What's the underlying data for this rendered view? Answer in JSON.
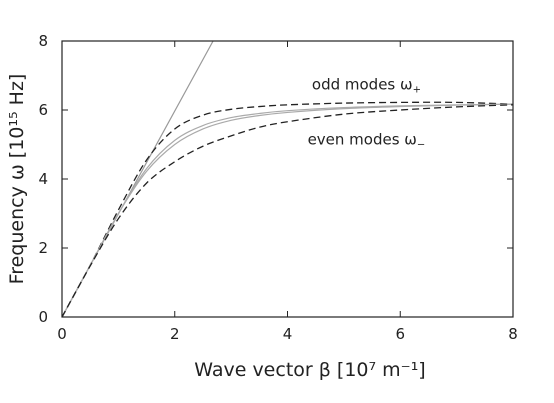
{
  "chart_data": {
    "type": "line",
    "xlabel": "Wave vector β [10⁷ m⁻¹]",
    "ylabel": "Frequency ω [10¹⁵ Hz]",
    "xlim": [
      0,
      8
    ],
    "ylim": [
      0,
      8
    ],
    "x_ticks": [
      "0",
      "2",
      "4",
      "6",
      "8"
    ],
    "y_ticks": [
      "0",
      "2",
      "4",
      "6",
      "8"
    ],
    "grid": false,
    "annotations": [
      {
        "text": "odd modes ω",
        "subscript": "+",
        "x": 5.4,
        "y": 6.6
      },
      {
        "text": "even modes ω",
        "subscript": "−",
        "x": 5.4,
        "y": 5.0
      }
    ],
    "series": [
      {
        "style": "light line",
        "color": "#999999",
        "x": [
          0,
          2.68
        ],
        "y": [
          0,
          8.0
        ]
      },
      {
        "style": "dashed",
        "color": "#222222",
        "x": [
          0,
          0.5,
          1.0,
          1.5,
          2.0,
          2.5,
          3.0,
          3.5,
          4.0,
          5.0,
          6.0,
          7.0,
          8.0
        ],
        "y": [
          0,
          1.5,
          3.1,
          4.55,
          5.45,
          5.85,
          6.02,
          6.1,
          6.15,
          6.2,
          6.22,
          6.22,
          6.17
        ]
      },
      {
        "style": "solid gray",
        "color": "#aaaaaa",
        "x": [
          0,
          0.5,
          1.0,
          1.5,
          2.0,
          2.5,
          3.0,
          3.5,
          4.0,
          5.0,
          6.0,
          7.0,
          8.0
        ],
        "y": [
          0,
          1.5,
          3.0,
          4.3,
          5.12,
          5.55,
          5.78,
          5.9,
          5.98,
          6.07,
          6.12,
          6.15,
          6.17
        ]
      },
      {
        "style": "solid gray",
        "color": "#aaaaaa",
        "x": [
          0,
          0.5,
          1.0,
          1.5,
          2.0,
          2.5,
          3.0,
          3.5,
          4.0,
          5.0,
          6.0,
          7.0,
          8.0
        ],
        "y": [
          0,
          1.5,
          3.0,
          4.22,
          5.0,
          5.45,
          5.7,
          5.84,
          5.93,
          6.04,
          6.1,
          6.14,
          6.17
        ]
      },
      {
        "style": "dashed",
        "color": "#222222",
        "x": [
          0,
          0.5,
          1.0,
          1.5,
          2.0,
          2.5,
          3.0,
          3.5,
          4.0,
          5.0,
          6.0,
          7.0,
          8.0
        ],
        "y": [
          0,
          1.48,
          2.85,
          3.88,
          4.5,
          4.95,
          5.25,
          5.5,
          5.66,
          5.88,
          6.0,
          6.09,
          6.15
        ]
      }
    ]
  }
}
